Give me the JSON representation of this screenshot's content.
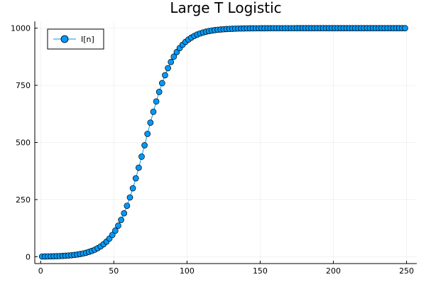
{
  "chart_data": {
    "type": "scatter",
    "title": "Large T Logistic",
    "xlabel": "",
    "ylabel": "",
    "xlim": [
      -4,
      257
    ],
    "ylim": [
      -30,
      1030
    ],
    "x_ticks": [
      0,
      50,
      100,
      150,
      200,
      250
    ],
    "y_ticks": [
      0,
      250,
      500,
      750,
      1000
    ],
    "x_tick_labels": [
      "0",
      "50",
      "100",
      "150",
      "200",
      "250"
    ],
    "y_tick_labels": [
      "0",
      "250",
      "500",
      "750",
      "1000"
    ],
    "grid": true,
    "legend_position": "top-left",
    "series_color": "#009AFA",
    "marker_stroke": "#000000",
    "series": [
      {
        "name": "I[n]",
        "x_start": 1,
        "x_end": 250,
        "x_step": 2,
        "model": "logistic",
        "capacity": 1000,
        "midpoint": 71.5,
        "rate": 0.1
      }
    ]
  }
}
